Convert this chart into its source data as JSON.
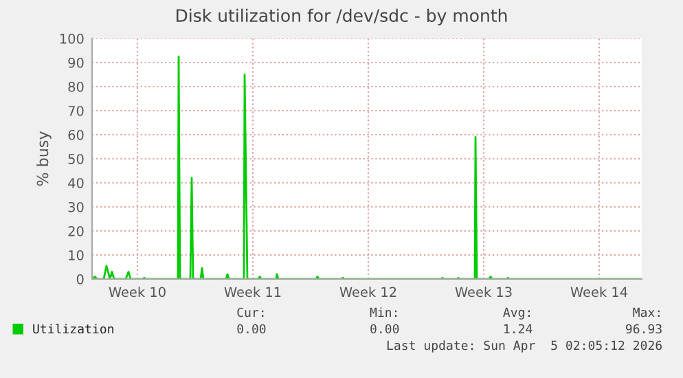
{
  "chart_data": {
    "type": "line",
    "title": "Disk utilization for /dev/sdc - by month",
    "ylabel": "% busy",
    "x": [
      "2026-02-27T06:00",
      "2026-02-27T10:00",
      "2026-02-27T13:00",
      "2026-02-27T23:00",
      "2026-02-28T03:00",
      "2026-02-28T08:00",
      "2026-02-28T11:00",
      "2026-02-28T14:00",
      "2026-03-01T07:00",
      "2026-03-01T11:00",
      "2026-03-01T14:00",
      "2026-03-02T08:00",
      "2026-03-02T10:00",
      "2026-03-02T12:00",
      "2026-03-04T11:00",
      "2026-03-04T12:00",
      "2026-03-04T14:00",
      "2026-03-05T05:00",
      "2026-03-05T07:00",
      "2026-03-05T09:00",
      "2026-03-05T20:00",
      "2026-03-05T22:00",
      "2026-03-06T00:00",
      "2026-03-07T09:00",
      "2026-03-07T11:00",
      "2026-03-07T13:00",
      "2026-03-08T11:00",
      "2026-03-08T12:00",
      "2026-03-08T16:00",
      "2026-03-09T08:00",
      "2026-03-09T10:00",
      "2026-03-09T12:00",
      "2026-03-10T10:00",
      "2026-03-10T11:00",
      "2026-03-10T13:00",
      "2026-03-12T20:00",
      "2026-03-12T22:00",
      "2026-03-13T00:00",
      "2026-03-14T09:00",
      "2026-03-14T11:00",
      "2026-03-14T13:00",
      "2026-03-20T10:00",
      "2026-03-20T12:00",
      "2026-03-20T13:00",
      "2026-03-21T09:00",
      "2026-03-21T11:00",
      "2026-03-21T13:00",
      "2026-03-22T11:00",
      "2026-03-22T12:00",
      "2026-03-22T14:00",
      "2026-03-23T08:00",
      "2026-03-23T10:00",
      "2026-03-23T12:00",
      "2026-03-24T10:00",
      "2026-03-24T11:00",
      "2026-03-24T13:00",
      "2026-04-01T14:00"
    ],
    "series": [
      {
        "name": "Utilization",
        "color": "#00cc00",
        "values": [
          0,
          1,
          0,
          0,
          5.5,
          0,
          3,
          0,
          0,
          3,
          0,
          0,
          0.5,
          0,
          0,
          92.5,
          0,
          0,
          42,
          0,
          0,
          4.5,
          0,
          0,
          2,
          0,
          0,
          85,
          0,
          0,
          1,
          0,
          0,
          2,
          0,
          0,
          1,
          0,
          0,
          0.5,
          0,
          0,
          0.5,
          0,
          0,
          0.5,
          0,
          0,
          59,
          0,
          0,
          1,
          0,
          0,
          0.5,
          0,
          0
        ]
      }
    ],
    "xlim": [
      "2026-02-27T06:00",
      "2026-04-01T14:00"
    ],
    "xticks": [
      {
        "value": "2026-03-02",
        "label": "Week 10"
      },
      {
        "value": "2026-03-09",
        "label": "Week 11"
      },
      {
        "value": "2026-03-16",
        "label": "Week 12"
      },
      {
        "value": "2026-03-23",
        "label": "Week 13"
      },
      {
        "value": "2026-03-30",
        "label": "Week 14"
      }
    ],
    "ylim": [
      0,
      100
    ],
    "yticks": [
      0,
      10,
      20,
      30,
      40,
      50,
      60,
      70,
      80,
      90,
      100
    ],
    "grid": true,
    "legend": "bottom",
    "marker": "none",
    "line_style": "solid",
    "annotations": [
      "Cur:",
      "Min:",
      "Avg:",
      "Max:",
      "0.00",
      "0.00",
      "1.24",
      "96.93",
      "Last update: Sun Apr  5 02:05:12 2026"
    ]
  }
}
